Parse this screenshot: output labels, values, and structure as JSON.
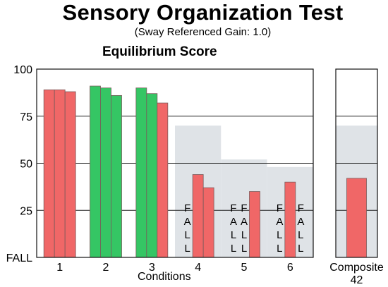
{
  "header": {
    "title": "Sensory Organization Test",
    "subtitle": "(Sway Referenced Gain: 1.0)",
    "score_title": "Equilibrium Score"
  },
  "colors": {
    "fail": "#f06767",
    "pass": "#35c664",
    "normal_band": "#dfe3e7",
    "bar_outline": "#7a5a5a"
  },
  "chart_data": {
    "type": "bar",
    "title": "Equilibrium Score",
    "xlabel": "Conditions",
    "ylabel": "",
    "ylim": [
      0,
      100
    ],
    "yticks": [
      "100",
      "75",
      "50",
      "25",
      "FALL"
    ],
    "ytick_values": [
      100,
      75,
      50,
      25,
      0
    ],
    "categories": [
      "1",
      "2",
      "3",
      "4",
      "5",
      "6"
    ],
    "trials": [
      [
        {
          "value": 89,
          "status": "fail"
        },
        {
          "value": 89,
          "status": "fail"
        },
        {
          "value": 88,
          "status": "fail"
        }
      ],
      [
        {
          "value": 91,
          "status": "pass"
        },
        {
          "value": 90,
          "status": "pass"
        },
        {
          "value": 86,
          "status": "pass"
        }
      ],
      [
        {
          "value": 90,
          "status": "pass"
        },
        {
          "value": 87,
          "status": "pass"
        },
        {
          "value": 82,
          "status": "fail"
        }
      ],
      [
        {
          "value": null,
          "status": "fall"
        },
        {
          "value": 44,
          "status": "fail"
        },
        {
          "value": 37,
          "status": "fail"
        }
      ],
      [
        {
          "value": null,
          "status": "fall"
        },
        {
          "value": null,
          "status": "fall"
        },
        {
          "value": 35,
          "status": "fail"
        }
      ],
      [
        {
          "value": null,
          "status": "fall"
        },
        {
          "value": 40,
          "status": "fail"
        },
        {
          "value": null,
          "status": "fall"
        }
      ]
    ],
    "normal_limits": [
      null,
      null,
      null,
      70,
      52,
      48
    ],
    "fall_text": "FALL",
    "composite": {
      "label": "Composite",
      "value": 42,
      "value_text": "42",
      "status": "fail",
      "normal_limit": 70
    }
  }
}
